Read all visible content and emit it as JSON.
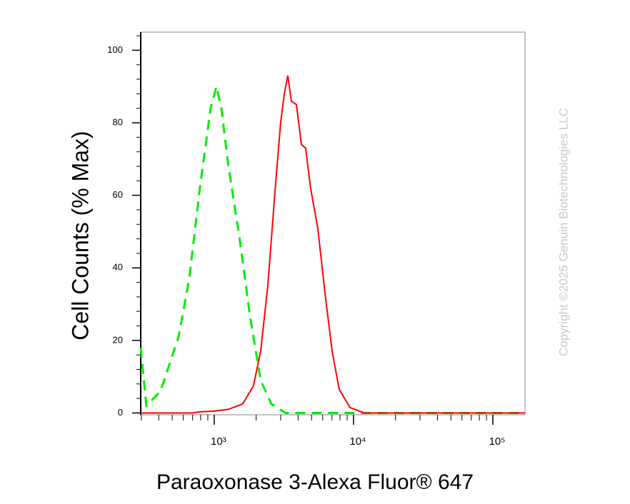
{
  "chart_data": {
    "type": "line",
    "x_label": "Paraoxonase 3-Alexa Fluor® 647",
    "y_label": "Cell Counts (% Max)",
    "watermark": "Copyright ©2025 Genuin Biotechnologies LLC",
    "xlog": true,
    "xlim": [
      297,
      170000
    ],
    "ylim": [
      -0.5,
      105
    ],
    "xticks": [
      {
        "value": 1000,
        "label": "10³"
      },
      {
        "value": 10000,
        "label": "10⁴"
      },
      {
        "value": 100000,
        "label": "10⁵"
      }
    ],
    "xminorticks": [
      300,
      400,
      500,
      600,
      700,
      800,
      900,
      2000,
      3000,
      4000,
      5000,
      6000,
      7000,
      8000,
      9000,
      20000,
      30000,
      40000,
      50000,
      60000,
      70000,
      80000,
      90000
    ],
    "yticks": [
      0,
      20,
      40,
      60,
      80,
      100
    ],
    "yminorticks": [
      4,
      8,
      12,
      16,
      24,
      28,
      32,
      36,
      44,
      48,
      52,
      56,
      64,
      68,
      72,
      76,
      84,
      88,
      92,
      96,
      104
    ],
    "series": [
      {
        "color": "#00ee00",
        "dashed": true,
        "x": [
          297,
          326,
          412,
          555,
          662,
          789,
          943,
          1036,
          1126,
          1266,
          1511,
          1804,
          2154,
          2570,
          3258,
          10600,
          170000
        ],
        "values": [
          18,
          2,
          6,
          21,
          37,
          62,
          84,
          90,
          84,
          68,
          49,
          27,
          9,
          2.5,
          0,
          0,
          0
        ]
      },
      {
        "color": "#ff0000",
        "dashed": false,
        "x": [
          297,
          701,
          789,
          1000,
          1266,
          1603,
          1914,
          2154,
          2425,
          2730,
          3000,
          3184,
          3375,
          3581,
          3890,
          4226,
          4531,
          4919,
          5540,
          6241,
          7020,
          7890,
          9420,
          11940,
          170000
        ],
        "values": [
          0,
          0,
          0.3,
          0.5,
          1,
          2.5,
          7.5,
          17,
          35,
          61,
          80,
          88,
          93,
          86,
          85,
          74,
          73,
          62,
          51,
          33,
          17,
          6.5,
          1.5,
          0,
          0
        ]
      }
    ]
  }
}
